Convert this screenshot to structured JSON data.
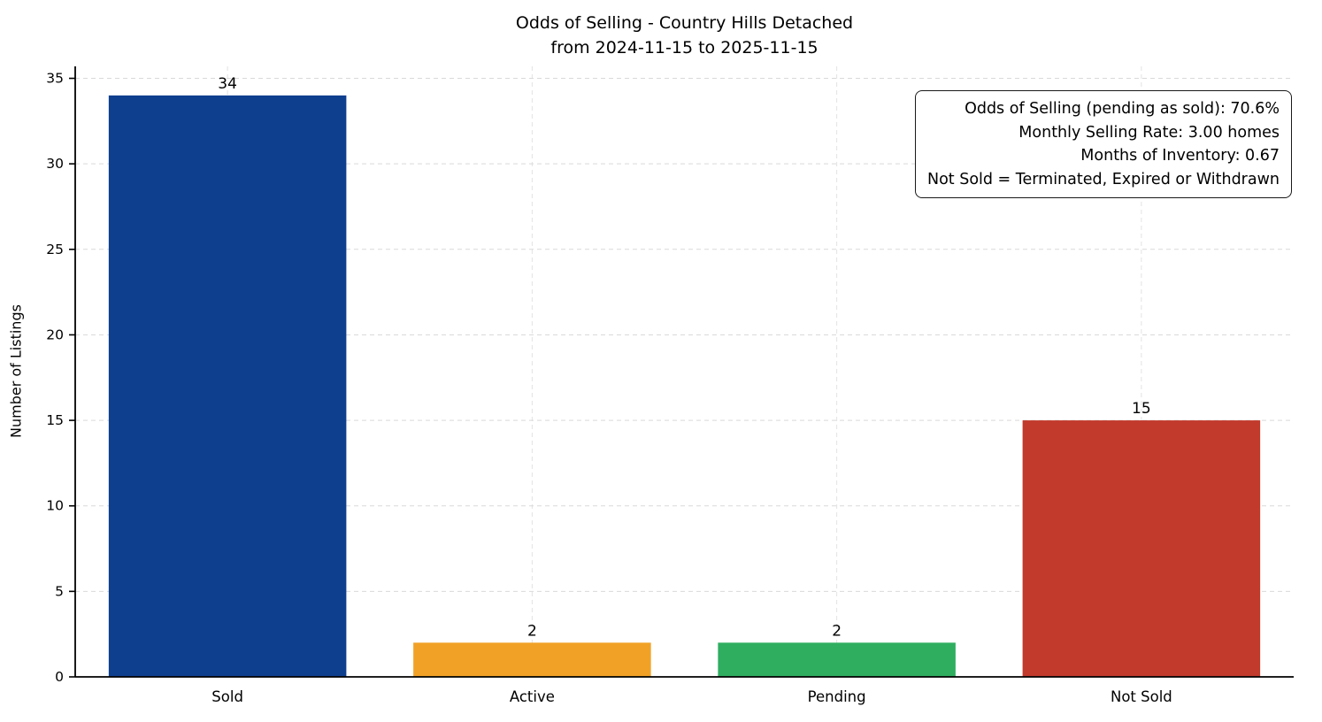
{
  "chart_data": {
    "type": "bar",
    "title_line1": "Odds of Selling - Country Hills Detached",
    "title_line2": "from 2024-11-15 to 2025-11-15",
    "categories": [
      "Sold",
      "Active",
      "Pending",
      "Not Sold"
    ],
    "values": [
      34,
      2,
      2,
      15
    ],
    "bar_colors": [
      "#0e3f8f",
      "#f1a226",
      "#2fae60",
      "#c13a2c"
    ],
    "xlabel": "",
    "ylabel": "Number of Listings",
    "ylim": [
      0,
      35.7
    ],
    "yticks": [
      0,
      5,
      10,
      15,
      20,
      25,
      30,
      35
    ],
    "grid": "dashed",
    "legend": "none",
    "annotations": [
      "Odds of Selling (pending as sold): 70.6%",
      "Monthly Selling Rate: 3.00 homes",
      "Months of Inventory: 0.67",
      "Not Sold = Terminated, Expired or Withdrawn"
    ]
  }
}
